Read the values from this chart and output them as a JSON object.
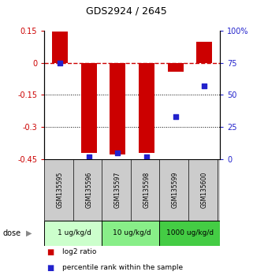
{
  "title": "GDS2924 / 2645",
  "samples": [
    "GSM135595",
    "GSM135596",
    "GSM135597",
    "GSM135598",
    "GSM135599",
    "GSM135600"
  ],
  "log2_ratio": [
    0.145,
    -0.42,
    -0.43,
    -0.42,
    -0.04,
    0.1
  ],
  "percentile_rank": [
    75,
    2,
    5,
    2,
    33,
    57
  ],
  "ylim_left": [
    -0.45,
    0.15
  ],
  "ylim_right": [
    0,
    100
  ],
  "yticks_left": [
    0.15,
    0,
    -0.15,
    -0.3,
    -0.45
  ],
  "ytick_labels_left": [
    "0.15",
    "0",
    "-0.15",
    "-0.3",
    "-0.45"
  ],
  "yticks_right": [
    100,
    75,
    50,
    25,
    0
  ],
  "ytick_labels_right": [
    "100%",
    "75",
    "50",
    "25",
    "0"
  ],
  "hline_y": 0,
  "dotted_lines": [
    -0.15,
    -0.3
  ],
  "bar_color": "#cc0000",
  "square_color": "#2222cc",
  "dose_groups": [
    {
      "label": "1 ug/kg/d",
      "indices": [
        0,
        1
      ],
      "color": "#ccffcc"
    },
    {
      "label": "10 ug/kg/d",
      "indices": [
        2,
        3
      ],
      "color": "#88ee88"
    },
    {
      "label": "1000 ug/kg/d",
      "indices": [
        4,
        5
      ],
      "color": "#44cc44"
    }
  ],
  "dose_label": "dose",
  "legend": [
    {
      "color": "#cc0000",
      "label": "log2 ratio"
    },
    {
      "color": "#2222cc",
      "label": "percentile rank within the sample"
    }
  ],
  "bar_width": 0.55,
  "square_size": 18,
  "dashed_line_color": "#cc0000",
  "axis_label_color_left": "#cc0000",
  "axis_label_color_right": "#2222cc",
  "xticklabel_area_color": "#cccccc"
}
